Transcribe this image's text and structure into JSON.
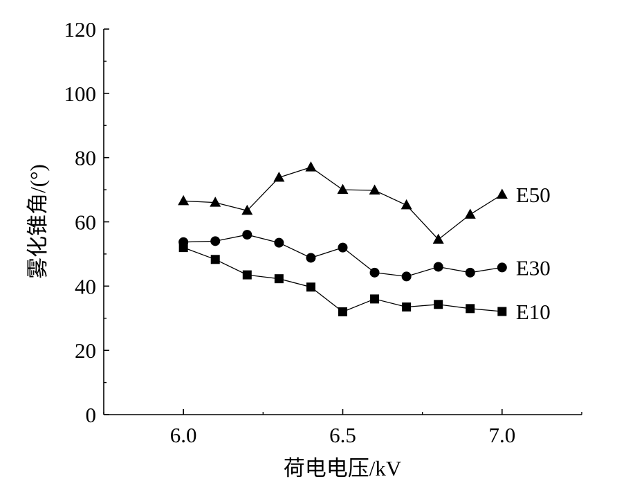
{
  "chart_data": {
    "type": "line",
    "title": "",
    "xlabel": "荷电电压/kV",
    "ylabel": "雾化锥角/(°)",
    "xlim": [
      5.75,
      7.25
    ],
    "ylim": [
      0,
      120
    ],
    "x_ticks": [
      "6.0",
      "6.5",
      "7.0"
    ],
    "y_ticks": [
      "0",
      "20",
      "40",
      "60",
      "80",
      "100",
      "120"
    ],
    "x_tick_values": [
      6.0,
      6.5,
      7.0
    ],
    "y_tick_values": [
      0,
      20,
      40,
      60,
      80,
      100,
      120
    ],
    "grid": false,
    "legend": "inline labels at line ends",
    "x": [
      6.0,
      6.1,
      6.2,
      6.3,
      6.4,
      6.5,
      6.6,
      6.7,
      6.8,
      6.9,
      7.0
    ],
    "series": [
      {
        "name": "E50",
        "marker": "triangle",
        "values": [
          66.5,
          66.0,
          63.5,
          73.8,
          77.0,
          70.0,
          69.8,
          65.2,
          54.5,
          62.3,
          68.5
        ]
      },
      {
        "name": "E30",
        "marker": "circle",
        "values": [
          53.7,
          54.0,
          56.0,
          53.5,
          48.8,
          52.0,
          44.2,
          43.0,
          46.0,
          44.2,
          45.8
        ]
      },
      {
        "name": "E10",
        "marker": "square",
        "values": [
          52.0,
          48.3,
          43.5,
          42.3,
          39.7,
          32.0,
          36.0,
          33.5,
          34.3,
          33.0,
          32.1
        ]
      }
    ],
    "colors": {
      "line": "#000000",
      "marker": "#000000",
      "axis": "#000000",
      "background": "#ffffff"
    }
  }
}
